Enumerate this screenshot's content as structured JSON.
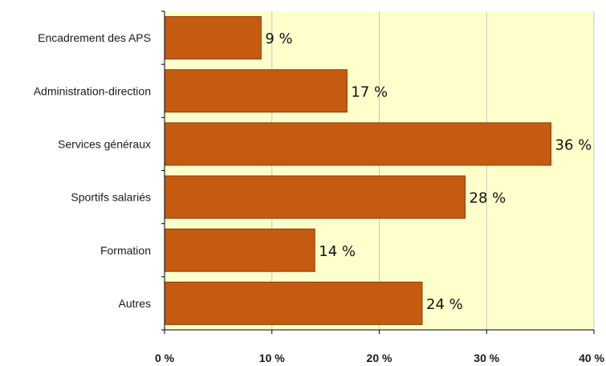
{
  "chart_data": {
    "type": "bar",
    "orientation": "horizontal",
    "categories": [
      "Encadrement des APS",
      "Administration-direction",
      "Services généraux",
      "Sportifs salariés",
      "Formation",
      "Autres"
    ],
    "values": [
      9,
      17,
      36,
      28,
      14,
      24
    ],
    "value_labels": [
      "9 %",
      "17 %",
      "36 %",
      "28 %",
      "14 %",
      "24 %"
    ],
    "xlim": [
      0,
      40
    ],
    "x_ticks": [
      0,
      10,
      20,
      30,
      40
    ],
    "x_tick_labels": [
      "0 %",
      "10 %",
      "20 %",
      "30 %",
      "40 %"
    ],
    "grid": "vertical",
    "legend": "none",
    "colors": {
      "bar": "#c55a11",
      "bar_edge": "#8a3d0a",
      "plot_background": "#ffffcc",
      "grid": "#c8c8c8",
      "axis": "#000000"
    }
  }
}
